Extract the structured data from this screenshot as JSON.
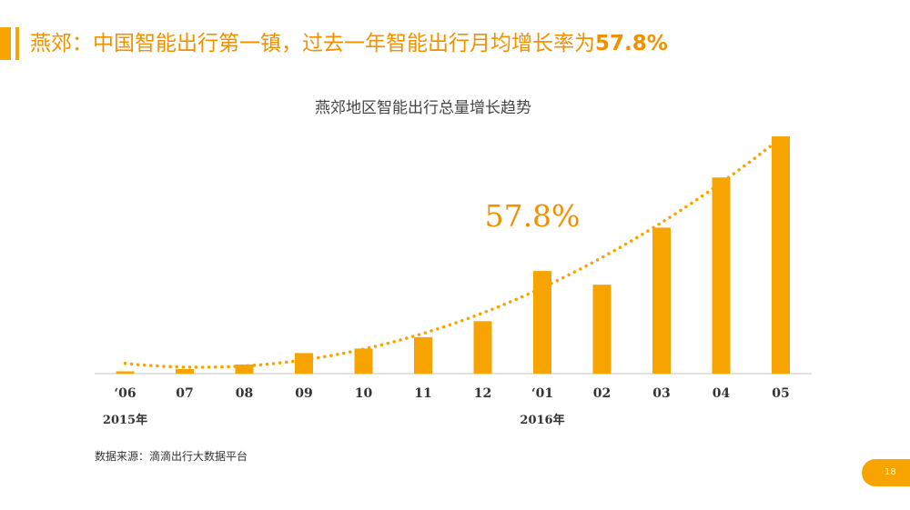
{
  "header": {
    "title_main": "燕郊：中国智能出行第一镇，过去一年智能出行月均增长率为",
    "title_highlight": "57.8%"
  },
  "chart_data": {
    "type": "bar",
    "title": "燕郊地区智能出行总量增长趋势",
    "categories": [
      "‘06",
      "07",
      "08",
      "09",
      "10",
      "11",
      "12",
      "‘01",
      "02",
      "03",
      "04",
      "05"
    ],
    "values": [
      1,
      2,
      4,
      9,
      11,
      16,
      23,
      45,
      39,
      64,
      86,
      104
    ],
    "ylim": [
      0,
      110
    ],
    "trendline": true,
    "trendline_style": "dotted",
    "annotation": "57.8%",
    "year_labels": [
      {
        "label": "2015年",
        "category_index": 0
      },
      {
        "label": "2016年",
        "category_index": 7
      }
    ],
    "bar_color": "#f7a400",
    "grid": false,
    "legend": "none"
  },
  "footer": {
    "source": "数据来源：滴滴出行大数据平台",
    "page_number": "18"
  },
  "colors": {
    "accent": "#f7a400",
    "title": "#f29100"
  }
}
